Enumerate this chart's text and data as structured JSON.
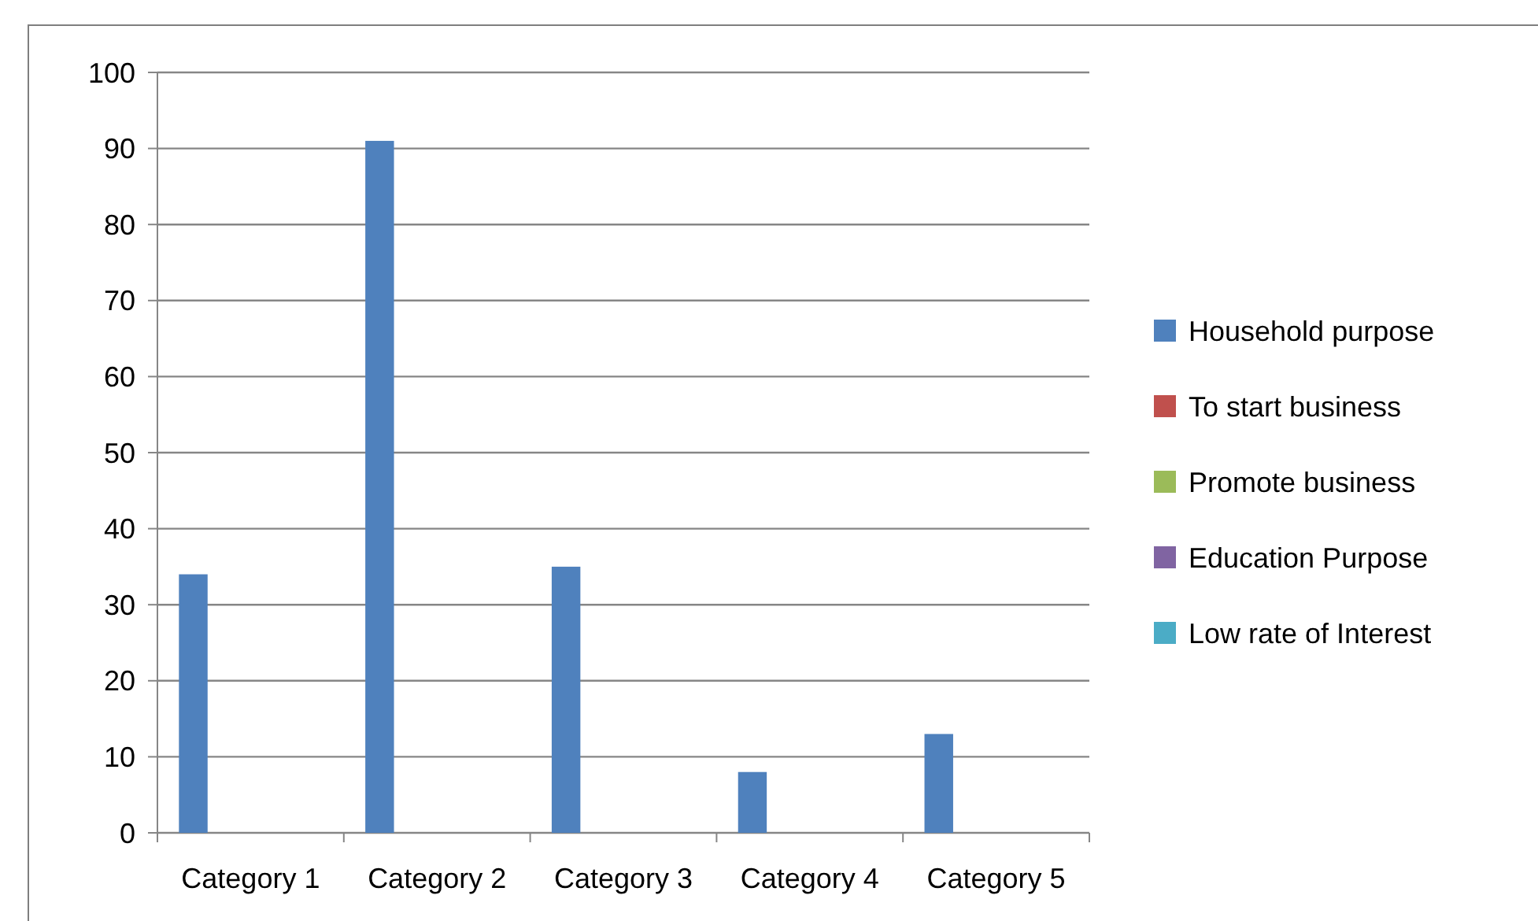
{
  "chart_data": {
    "type": "bar",
    "categories": [
      "Category 1",
      "Category 2",
      "Category 3",
      "Category 4",
      "Category 5"
    ],
    "series": [
      {
        "name": "Household purpose",
        "color": "#4f81bd",
        "values": [
          34,
          91,
          35,
          8,
          13
        ]
      },
      {
        "name": "To start business",
        "color": "#c0504d",
        "values": [
          null,
          null,
          null,
          null,
          null
        ]
      },
      {
        "name": "Promote business",
        "color": "#9bbb59",
        "values": [
          null,
          null,
          null,
          null,
          null
        ]
      },
      {
        "name": "Education Purpose",
        "color": "#8064a2",
        "values": [
          null,
          null,
          null,
          null,
          null
        ]
      },
      {
        "name": "Low rate of Interest",
        "color": "#4bacc6",
        "values": [
          null,
          null,
          null,
          null,
          null
        ]
      }
    ],
    "ylim": [
      0,
      100
    ],
    "yticks": [
      0,
      10,
      20,
      30,
      40,
      50,
      60,
      70,
      80,
      90,
      100
    ],
    "grid": "y",
    "legend": "right"
  }
}
